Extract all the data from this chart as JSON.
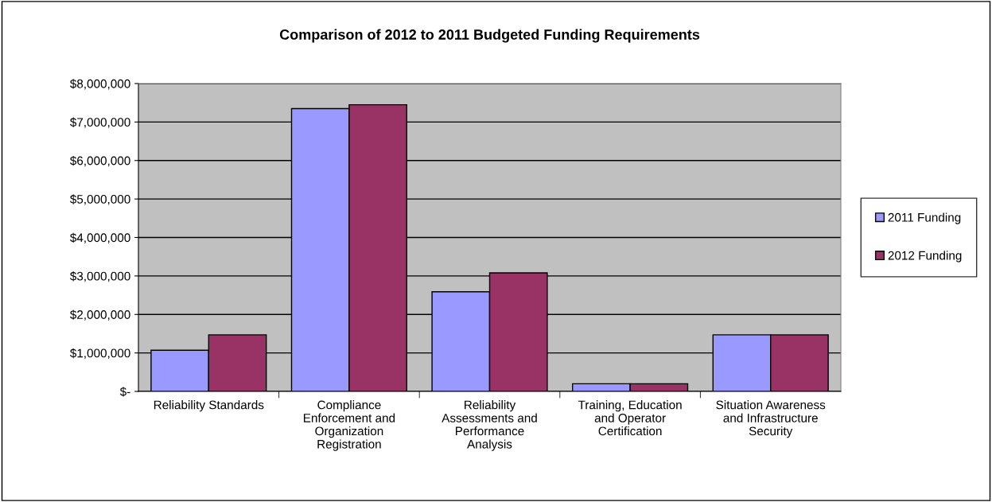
{
  "chart_data": {
    "type": "bar",
    "title": "Comparison of 2012 to 2011 Budgeted Funding Requirements",
    "categories": [
      "Reliability Standards",
      "Compliance\nEnforcement and\nOrganization\nRegistration",
      "Reliability\nAssessments and\nPerformance\nAnalysis",
      "Training, Education\nand Operator\nCertification",
      "Situation Awareness\nand Infrastructure\nSecurity"
    ],
    "series": [
      {
        "name": "2011 Funding",
        "color": "#9999ff",
        "values": [
          1070000,
          7350000,
          2590000,
          200000,
          1470000
        ]
      },
      {
        "name": "2012 Funding",
        "color": "#993366",
        "values": [
          1470000,
          7450000,
          3080000,
          200000,
          1470000
        ]
      }
    ],
    "ylim": [
      0,
      8000000
    ],
    "yticks": [
      {
        "value": 0,
        "label": "$-"
      },
      {
        "value": 1000000,
        "label": "$1,000,000"
      },
      {
        "value": 2000000,
        "label": "$2,000,000"
      },
      {
        "value": 3000000,
        "label": "$3,000,000"
      },
      {
        "value": 4000000,
        "label": "$4,000,000"
      },
      {
        "value": 5000000,
        "label": "$5,000,000"
      },
      {
        "value": 6000000,
        "label": "$6,000,000"
      },
      {
        "value": 7000000,
        "label": "$7,000,000"
      },
      {
        "value": 8000000,
        "label": "$8,000,000"
      }
    ],
    "grid": "y",
    "legend": "right"
  }
}
